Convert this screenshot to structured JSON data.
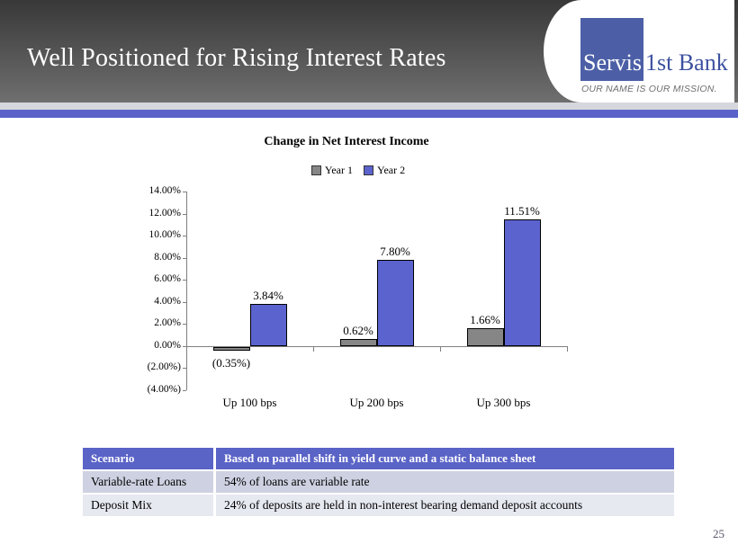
{
  "slide": {
    "title": "Well Positioned for Rising Interest Rates",
    "page_number": "25"
  },
  "logo": {
    "name_part1": "Servis",
    "name_part2": "1st Bank",
    "tagline": "OUR NAME IS OUR MISSION.",
    "square_color": "#4c5fa6",
    "text_color": "#3d51a0",
    "tagline_color": "#6d6e71"
  },
  "colors": {
    "stripe_gray": "#d6d7dc",
    "stripe_blue": "#5a62c9",
    "axis": "#808080"
  },
  "chart_data": {
    "type": "bar",
    "title": "Change in Net Interest Income",
    "categories": [
      "Up 100 bps",
      "Up 200 bps",
      "Up 300 bps"
    ],
    "series": [
      {
        "name": "Year 1",
        "color": "#868686",
        "values": [
          -0.35,
          0.62,
          1.66
        ],
        "labels": [
          "(0.35%)",
          "0.62%",
          "1.66%"
        ]
      },
      {
        "name": "Year 2",
        "color": "#5b63ce",
        "values": [
          3.84,
          7.8,
          11.51
        ],
        "labels": [
          "3.84%",
          "7.80%",
          "11.51%"
        ]
      }
    ],
    "ylim": [
      -4,
      14
    ],
    "ytick_labels": [
      "14.00%",
      "12.00%",
      "10.00%",
      "8.00%",
      "6.00%",
      "4.00%",
      "2.00%",
      "0.00%",
      "(2.00%)",
      "(4.00%)"
    ],
    "xlabel": "",
    "ylabel": "",
    "grid": false,
    "legend_position": "top"
  },
  "table": {
    "header": {
      "col1": "Scenario",
      "col2": "Based on parallel shift in yield curve and a static balance sheet"
    },
    "rows": [
      {
        "col1": "Variable-rate Loans",
        "col2": "54% of loans are variable rate"
      },
      {
        "col1": "Deposit Mix",
        "col2": "24% of deposits are held in non-interest bearing demand deposit accounts"
      }
    ],
    "header_bg": "#5a63c6",
    "row_bgs": [
      "#cdd1e1",
      "#e7e9f1"
    ]
  }
}
